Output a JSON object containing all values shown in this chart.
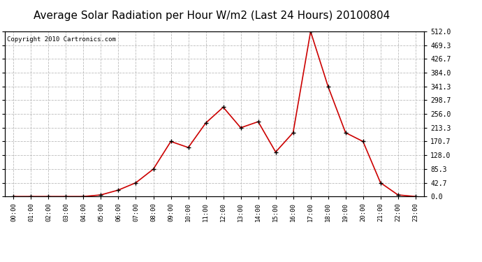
{
  "title": "Average Solar Radiation per Hour W/m2 (Last 24 Hours) 20100804",
  "copyright": "Copyright 2010 Cartronics.com",
  "hours": [
    "00:00",
    "01:00",
    "02:00",
    "03:00",
    "04:00",
    "05:00",
    "06:00",
    "07:00",
    "08:00",
    "09:00",
    "10:00",
    "11:00",
    "12:00",
    "13:00",
    "14:00",
    "15:00",
    "16:00",
    "17:00",
    "18:00",
    "19:00",
    "20:00",
    "21:00",
    "22:00",
    "23:00"
  ],
  "values": [
    0.0,
    0.0,
    0.0,
    0.0,
    0.0,
    5.0,
    20.0,
    42.7,
    85.0,
    170.7,
    152.0,
    228.0,
    277.0,
    213.3,
    232.0,
    138.0,
    198.0,
    512.0,
    341.3,
    198.0,
    170.7,
    42.7,
    5.0,
    0.0
  ],
  "line_color": "#cc0000",
  "marker_color": "#000000",
  "background_color": "#ffffff",
  "grid_color": "#bbbbbb",
  "yticks": [
    0.0,
    42.7,
    85.3,
    128.0,
    170.7,
    213.3,
    256.0,
    298.7,
    341.3,
    384.0,
    426.7,
    469.3,
    512.0
  ],
  "ylim": [
    0.0,
    512.0
  ],
  "title_fontsize": 11,
  "copyright_fontsize": 6.5
}
